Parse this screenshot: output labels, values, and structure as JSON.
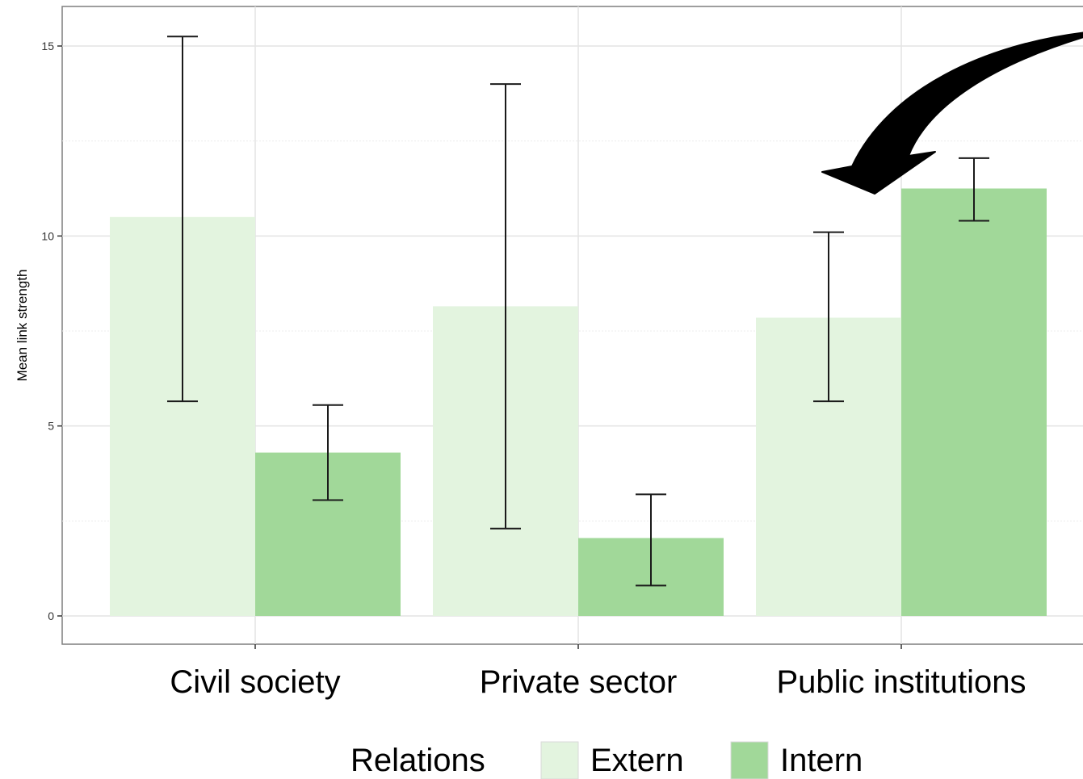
{
  "chart_data": {
    "type": "bar",
    "title": "",
    "xlabel": "",
    "ylabel": "Mean link strength",
    "ylim": [
      -0.7,
      16.1
    ],
    "yticks": [
      0,
      5,
      10,
      15
    ],
    "categories": [
      "Civil society",
      "Private sector",
      "Public institutions"
    ],
    "series": [
      {
        "name": "Extern",
        "color": "#e3f4df",
        "values": [
          10.5,
          8.15,
          7.85
        ],
        "error_low": [
          5.65,
          2.3,
          5.65
        ],
        "error_high": [
          15.25,
          14.0,
          10.1
        ]
      },
      {
        "name": "Intern",
        "color": "#a1d899",
        "values": [
          4.3,
          2.05,
          11.25
        ],
        "error_low": [
          3.05,
          0.8,
          10.4
        ],
        "error_high": [
          5.55,
          3.2,
          12.05
        ]
      }
    ],
    "grid": true,
    "legend": {
      "title": "Relations",
      "position": "bottom"
    },
    "annotation": "curved-arrow"
  }
}
